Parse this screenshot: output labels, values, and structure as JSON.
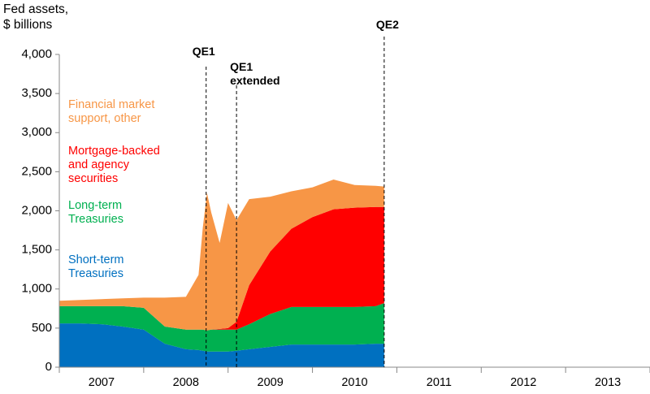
{
  "chart_data": {
    "type": "stacked-area",
    "y_axis_label": "Fed assets, $ billions",
    "x": [
      2007.0,
      2007.25,
      2007.5,
      2007.75,
      2008.0,
      2008.25,
      2008.5,
      2008.65,
      2008.7,
      2008.75,
      2008.8,
      2008.9,
      2009.0,
      2009.1,
      2009.25,
      2009.5,
      2009.75,
      2010.0,
      2010.25,
      2010.5,
      2010.75,
      2010.85
    ],
    "series": [
      {
        "name": "Short-term Treasuries",
        "color": "#0070c0",
        "values": [
          560,
          560,
          550,
          520,
          480,
          300,
          230,
          220,
          210,
          200,
          200,
          200,
          200,
          210,
          230,
          260,
          290,
          290,
          290,
          290,
          300,
          300
        ]
      },
      {
        "name": "Long-term Treasuries",
        "color": "#00b050",
        "values": [
          220,
          220,
          230,
          260,
          280,
          220,
          250,
          260,
          270,
          270,
          280,
          280,
          280,
          270,
          320,
          420,
          480,
          480,
          480,
          480,
          480,
          520
        ]
      },
      {
        "name": "Mortgage-backed and agency securities",
        "color": "#ff0000",
        "values": [
          0,
          0,
          0,
          0,
          0,
          0,
          0,
          0,
          0,
          0,
          0,
          10,
          20,
          100,
          500,
          800,
          1000,
          1150,
          1250,
          1270,
          1270,
          1230
        ]
      },
      {
        "name": "Financial market support, other",
        "color": "#f79646",
        "values": [
          70,
          80,
          90,
          100,
          130,
          370,
          420,
          700,
          1300,
          1760,
          1500,
          1100,
          1600,
          1300,
          1100,
          700,
          480,
          380,
          380,
          290,
          270,
          260
        ]
      }
    ],
    "xlim": [
      2007,
      2014
    ],
    "xticks": [
      {
        "value": 2007.5,
        "label": "2007"
      },
      {
        "value": 2008.5,
        "label": "2008"
      },
      {
        "value": 2009.5,
        "label": "2009"
      },
      {
        "value": 2010.5,
        "label": "2010"
      },
      {
        "value": 2011.5,
        "label": "2011"
      },
      {
        "value": 2012.5,
        "label": "2012"
      },
      {
        "value": 2013.5,
        "label": "2013"
      }
    ],
    "ylim": [
      0,
      4000
    ],
    "yticks": [
      0,
      500,
      {
        "value": 1000,
        "label": "1,000"
      },
      {
        "value": 1500,
        "label": "1,500"
      },
      {
        "value": 2000,
        "label": "2,000"
      },
      {
        "value": 2500,
        "label": "2,500"
      },
      {
        "value": 3000,
        "label": "3,000"
      },
      {
        "value": 3500,
        "label": "3,500"
      },
      {
        "value": 4000,
        "label": "4,000"
      }
    ],
    "annotations": [
      {
        "text": "QE1",
        "x": 2008.74
      },
      {
        "text": "QE1 extended",
        "x": 2009.1
      },
      {
        "text": "QE2",
        "x": 2010.85
      }
    ]
  }
}
